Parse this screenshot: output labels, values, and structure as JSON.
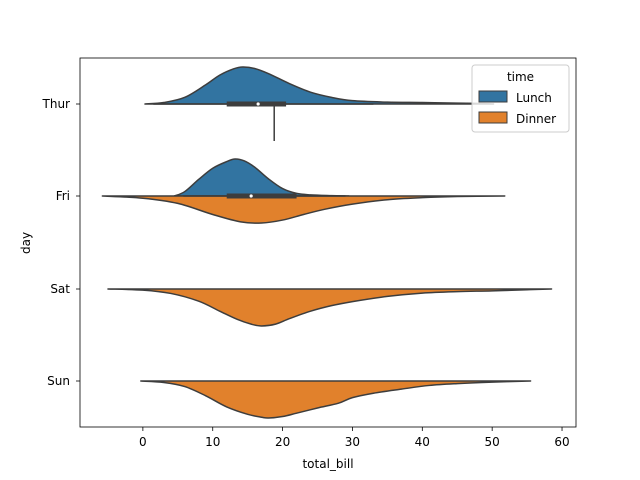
{
  "chart_data": {
    "type": "violin",
    "orientation": "horizontal",
    "split": true,
    "xlabel": "total_bill",
    "ylabel": "day",
    "xlim": [
      -9,
      62
    ],
    "xticks": [
      0,
      10,
      20,
      30,
      40,
      50,
      60
    ],
    "categories": [
      "Thur",
      "Fri",
      "Sat",
      "Sun"
    ],
    "legend": {
      "title": "time",
      "position": "top-right",
      "entries": [
        {
          "label": "Lunch",
          "color": "#3274a1"
        },
        {
          "label": "Dinner",
          "color": "#e1812c"
        }
      ]
    },
    "series": [
      {
        "name": "Lunch",
        "color": "#3274a1",
        "side": "upper",
        "violins": [
          {
            "category": "Thur",
            "range": [
              0.3,
              50.2
            ],
            "profile": [
              [
                0.3,
                0.0
              ],
              [
                3,
                0.04
              ],
              [
                6,
                0.18
              ],
              [
                9,
                0.52
              ],
              [
                11,
                0.78
              ],
              [
                13,
                0.95
              ],
              [
                14.3,
                1.0
              ],
              [
                16,
                0.96
              ],
              [
                18,
                0.82
              ],
              [
                21,
                0.55
              ],
              [
                24,
                0.32
              ],
              [
                27,
                0.18
              ],
              [
                30,
                0.09
              ],
              [
                35,
                0.05
              ],
              [
                40,
                0.04
              ],
              [
                45,
                0.025
              ],
              [
                48,
                0.015
              ],
              [
                50.2,
                0.0
              ]
            ],
            "box": {
              "q1": 12.0,
              "median": 16.5,
              "q3": 20.5
            },
            "whisker": [
              1.5,
              33.0
            ]
          },
          {
            "category": "Fri",
            "range": [
              4.5,
              29.5
            ],
            "profile": [
              [
                4.5,
                0.0
              ],
              [
                6,
                0.12
              ],
              [
                8,
                0.45
              ],
              [
                10,
                0.75
              ],
              [
                12,
                0.93
              ],
              [
                13.2,
                1.0
              ],
              [
                14.5,
                0.95
              ],
              [
                16,
                0.78
              ],
              [
                18,
                0.46
              ],
              [
                20,
                0.2
              ],
              [
                22,
                0.07
              ],
              [
                24,
                0.03
              ],
              [
                27,
                0.01
              ],
              [
                29.5,
                0.0
              ]
            ],
            "box": {
              "q1": 12.0,
              "median": 15.5,
              "q3": 22.0
            },
            "whisker": [
              5.8,
              29.0
            ]
          }
        ]
      },
      {
        "name": "Dinner",
        "color": "#e1812c",
        "side": "lower",
        "violins": [
          {
            "category": "Thur",
            "range": [
              18.8,
              18.8
            ],
            "profile": [],
            "box": null,
            "whisker": null
          },
          {
            "category": "Fri",
            "range": [
              -5.8,
              51.8
            ],
            "profile": [
              [
                -5.8,
                0.0
              ],
              [
                0,
                0.06
              ],
              [
                5,
                0.2
              ],
              [
                10,
                0.5
              ],
              [
                14,
                0.7
              ],
              [
                17,
                0.73
              ],
              [
                20,
                0.65
              ],
              [
                23,
                0.5
              ],
              [
                26,
                0.36
              ],
              [
                30,
                0.22
              ],
              [
                35,
                0.1
              ],
              [
                40,
                0.045
              ],
              [
                45,
                0.015
              ],
              [
                51.8,
                0.0
              ]
            ],
            "box": null,
            "whisker": null
          },
          {
            "category": "Sat",
            "range": [
              -5.0,
              58.5
            ],
            "profile": [
              [
                -5,
                0.0
              ],
              [
                0,
                0.03
              ],
              [
                4,
                0.12
              ],
              [
                8,
                0.33
              ],
              [
                11,
                0.6
              ],
              [
                13.5,
                0.82
              ],
              [
                15.5,
                0.95
              ],
              [
                17,
                1.0
              ],
              [
                19,
                0.95
              ],
              [
                21,
                0.8
              ],
              [
                24,
                0.6
              ],
              [
                27,
                0.45
              ],
              [
                30,
                0.34
              ],
              [
                35,
                0.2
              ],
              [
                40,
                0.11
              ],
              [
                45,
                0.07
              ],
              [
                50,
                0.05
              ],
              [
                55,
                0.02
              ],
              [
                58.5,
                0.0
              ]
            ],
            "box": null,
            "whisker": null
          },
          {
            "category": "Sun",
            "range": [
              -0.3,
              55.5
            ],
            "profile": [
              [
                -0.3,
                0.0
              ],
              [
                3,
                0.04
              ],
              [
                6,
                0.15
              ],
              [
                9,
                0.4
              ],
              [
                12,
                0.7
              ],
              [
                15,
                0.9
              ],
              [
                17,
                0.98
              ],
              [
                18,
                1.0
              ],
              [
                20,
                0.96
              ],
              [
                22,
                0.87
              ],
              [
                25,
                0.73
              ],
              [
                28,
                0.6
              ],
              [
                30,
                0.45
              ],
              [
                33,
                0.33
              ],
              [
                37,
                0.22
              ],
              [
                41,
                0.12
              ],
              [
                45,
                0.07
              ],
              [
                50,
                0.03
              ],
              [
                55.5,
                0.0
              ]
            ],
            "box": null,
            "whisker": null
          }
        ]
      }
    ]
  }
}
